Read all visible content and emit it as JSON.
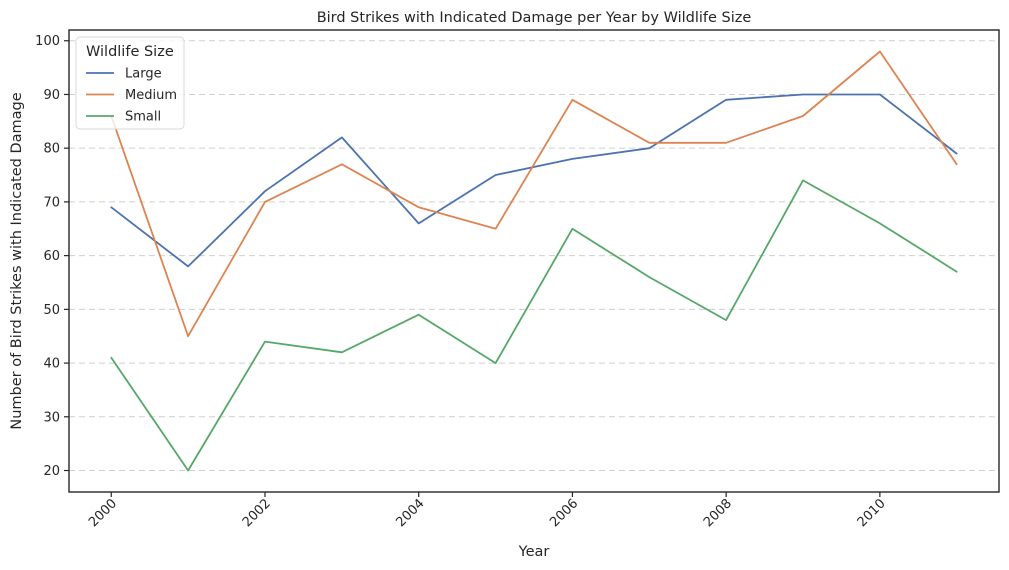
{
  "chart_data": {
    "type": "line",
    "title": "Bird Strikes with Indicated Damage per Year by Wildlife Size",
    "xlabel": "Year",
    "ylabel": "Number of Bird Strikes with Indicated Damage",
    "x": [
      2000,
      2001,
      2002,
      2003,
      2004,
      2005,
      2006,
      2007,
      2008,
      2009,
      2010,
      2011
    ],
    "xlim": [
      1999.45,
      2011.55
    ],
    "ylim": [
      16,
      102
    ],
    "xticks": [
      2000,
      2002,
      2004,
      2006,
      2008,
      2010
    ],
    "yticks": [
      20,
      30,
      40,
      50,
      60,
      70,
      80,
      90,
      100
    ],
    "grid": "horizontal dashed",
    "legend": {
      "title": "Wildlife Size",
      "placement": "top-left"
    },
    "series": [
      {
        "name": "Large",
        "color": "#4c72b0",
        "values": [
          69,
          58,
          72,
          82,
          66,
          75,
          78,
          80,
          89,
          90,
          90,
          79
        ]
      },
      {
        "name": "Medium",
        "color": "#dd8452",
        "values": [
          86,
          45,
          70,
          77,
          69,
          65,
          89,
          81,
          81,
          86,
          98,
          77
        ]
      },
      {
        "name": "Small",
        "color": "#55a868",
        "values": [
          41,
          20,
          44,
          42,
          49,
          40,
          65,
          56,
          48,
          74,
          66,
          57
        ]
      }
    ]
  }
}
